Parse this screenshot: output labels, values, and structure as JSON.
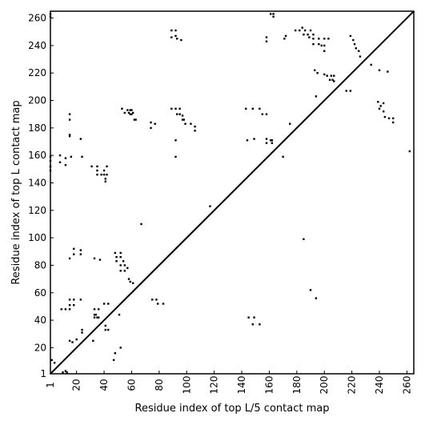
{
  "chart_data": {
    "type": "scatter",
    "title": "",
    "xlabel": "Residue index of top L/5 contact map",
    "ylabel": "Residue index of top L contact map",
    "xlim": [
      1,
      265
    ],
    "ylim": [
      1,
      265
    ],
    "xticks": [
      1,
      20,
      40,
      60,
      80,
      100,
      120,
      140,
      160,
      180,
      200,
      220,
      240,
      260
    ],
    "yticks": [
      1,
      20,
      40,
      60,
      80,
      100,
      120,
      140,
      160,
      180,
      200,
      220,
      240,
      260
    ],
    "xtick_rotation": -90,
    "grid": false,
    "legend": "none",
    "marker": "square",
    "marker_color": "#000000",
    "diagonal_line": [
      [
        1,
        1
      ],
      [
        265,
        265
      ]
    ],
    "series": [
      {
        "role": "upper-left (top L map)",
        "points": [
          [
            1,
            263
          ],
          [
            1,
            261
          ],
          [
            1,
            159
          ],
          [
            1,
            156
          ],
          [
            1,
            152
          ],
          [
            1,
            149
          ],
          [
            8,
            160
          ],
          [
            8,
            155
          ],
          [
            12,
            158
          ],
          [
            12,
            153
          ],
          [
            15,
            190
          ],
          [
            15,
            186
          ],
          [
            15,
            175
          ],
          [
            15,
            174
          ],
          [
            16,
            159
          ],
          [
            23,
            172
          ],
          [
            24,
            159
          ],
          [
            31,
            152
          ],
          [
            35,
            152
          ],
          [
            35,
            149
          ],
          [
            35,
            146
          ],
          [
            38,
            146
          ],
          [
            40,
            149
          ],
          [
            40,
            146
          ],
          [
            41,
            143
          ],
          [
            41,
            141
          ],
          [
            42,
            152
          ],
          [
            42,
            146
          ],
          [
            33,
            85
          ],
          [
            37,
            84
          ],
          [
            15,
            85
          ],
          [
            18,
            92
          ],
          [
            18,
            88
          ],
          [
            23,
            91
          ],
          [
            23,
            88
          ],
          [
            53,
            194
          ],
          [
            55,
            191
          ],
          [
            57,
            193
          ],
          [
            58,
            191
          ],
          [
            59,
            193
          ],
          [
            59,
            190
          ],
          [
            60,
            193
          ],
          [
            60,
            190
          ],
          [
            61,
            191
          ],
          [
            62,
            186
          ],
          [
            63,
            186
          ],
          [
            67,
            110
          ],
          [
            74,
            184
          ],
          [
            74,
            180
          ],
          [
            77,
            183
          ],
          [
            89,
            251
          ],
          [
            89,
            246
          ],
          [
            92,
            251
          ],
          [
            92,
            247
          ],
          [
            93,
            245
          ],
          [
            96,
            244
          ],
          [
            89,
            194
          ],
          [
            92,
            194
          ],
          [
            93,
            190
          ],
          [
            95,
            194
          ],
          [
            95,
            190
          ],
          [
            97,
            189
          ],
          [
            97,
            186
          ],
          [
            98,
            186
          ],
          [
            99,
            183
          ],
          [
            103,
            183
          ],
          [
            106,
            181
          ],
          [
            106,
            178
          ],
          [
            92,
            171
          ],
          [
            92,
            159
          ],
          [
            117,
            123
          ],
          [
            143,
            194
          ],
          [
            144,
            171
          ],
          [
            148,
            194
          ],
          [
            149,
            172
          ],
          [
            153,
            194
          ],
          [
            155,
            190
          ],
          [
            158,
            190
          ],
          [
            158,
            172
          ],
          [
            158,
            169
          ],
          [
            161,
            171
          ],
          [
            162,
            171
          ],
          [
            162,
            169
          ],
          [
            170,
            159
          ],
          [
            175,
            183
          ],
          [
            158,
            246
          ],
          [
            158,
            243
          ],
          [
            161,
            263
          ],
          [
            163,
            261
          ],
          [
            163,
            263
          ],
          [
            171,
            245
          ],
          [
            172,
            247
          ],
          [
            179,
            251
          ],
          [
            182,
            251
          ],
          [
            184,
            253
          ],
          [
            185,
            248
          ],
          [
            186,
            251
          ],
          [
            188,
            248
          ],
          [
            189,
            246
          ],
          [
            190,
            251
          ],
          [
            192,
            248
          ],
          [
            192,
            245
          ],
          [
            192,
            241
          ],
          [
            193,
            222
          ],
          [
            195,
            220
          ],
          [
            196,
            241
          ],
          [
            196,
            245
          ],
          [
            198,
            240
          ],
          [
            200,
            240
          ],
          [
            200,
            236
          ],
          [
            200,
            245
          ],
          [
            200,
            219
          ],
          [
            202,
            218
          ],
          [
            203,
            245
          ],
          [
            204,
            215
          ],
          [
            205,
            218
          ],
          [
            206,
            215
          ],
          [
            207,
            218
          ],
          [
            207,
            214
          ],
          [
            216,
            207
          ],
          [
            219,
            207
          ],
          [
            219,
            247
          ],
          [
            221,
            244
          ],
          [
            222,
            241
          ],
          [
            223,
            238
          ],
          [
            225,
            236
          ],
          [
            226,
            232
          ],
          [
            234,
            226
          ],
          [
            239,
            199
          ],
          [
            240,
            194
          ],
          [
            240,
            222
          ],
          [
            241,
            196
          ],
          [
            243,
            198
          ],
          [
            243,
            192
          ],
          [
            244,
            188
          ],
          [
            246,
            221
          ],
          [
            247,
            187
          ],
          [
            250,
            187
          ],
          [
            250,
            184
          ],
          [
            262,
            163
          ]
        ]
      },
      {
        "role": "lower-right (top L/5 map)",
        "points": [
          [
            2,
            11
          ],
          [
            4,
            9
          ],
          [
            10,
            2
          ],
          [
            12,
            3
          ],
          [
            13,
            2
          ],
          [
            9,
            48
          ],
          [
            12,
            48
          ],
          [
            15,
            55
          ],
          [
            15,
            51
          ],
          [
            15,
            48
          ],
          [
            18,
            55
          ],
          [
            18,
            51
          ],
          [
            23,
            55
          ],
          [
            15,
            25
          ],
          [
            17,
            24
          ],
          [
            20,
            26
          ],
          [
            24,
            31
          ],
          [
            24,
            33
          ],
          [
            33,
            48
          ],
          [
            33,
            44
          ],
          [
            33,
            42
          ],
          [
            34,
            44
          ],
          [
            35,
            42
          ],
          [
            36,
            48
          ],
          [
            36,
            42
          ],
          [
            40,
            52
          ],
          [
            41,
            36
          ],
          [
            41,
            33
          ],
          [
            43,
            52
          ],
          [
            43,
            33
          ],
          [
            32,
            25
          ],
          [
            47,
            11
          ],
          [
            48,
            16
          ],
          [
            52,
            20
          ],
          [
            51,
            44
          ],
          [
            48,
            89
          ],
          [
            49,
            86
          ],
          [
            49,
            83
          ],
          [
            52,
            89
          ],
          [
            52,
            86
          ],
          [
            52,
            80
          ],
          [
            52,
            76
          ],
          [
            54,
            83
          ],
          [
            55,
            80
          ],
          [
            55,
            76
          ],
          [
            57,
            78
          ],
          [
            58,
            70
          ],
          [
            59,
            68
          ],
          [
            61,
            67
          ],
          [
            75,
            55
          ],
          [
            78,
            55
          ],
          [
            79,
            52
          ],
          [
            83,
            52
          ],
          [
            145,
            42
          ],
          [
            148,
            37
          ],
          [
            149,
            42
          ],
          [
            153,
            37
          ],
          [
            185,
            99
          ],
          [
            190,
            62
          ],
          [
            194,
            56
          ],
          [
            194,
            203
          ]
        ]
      }
    ]
  }
}
